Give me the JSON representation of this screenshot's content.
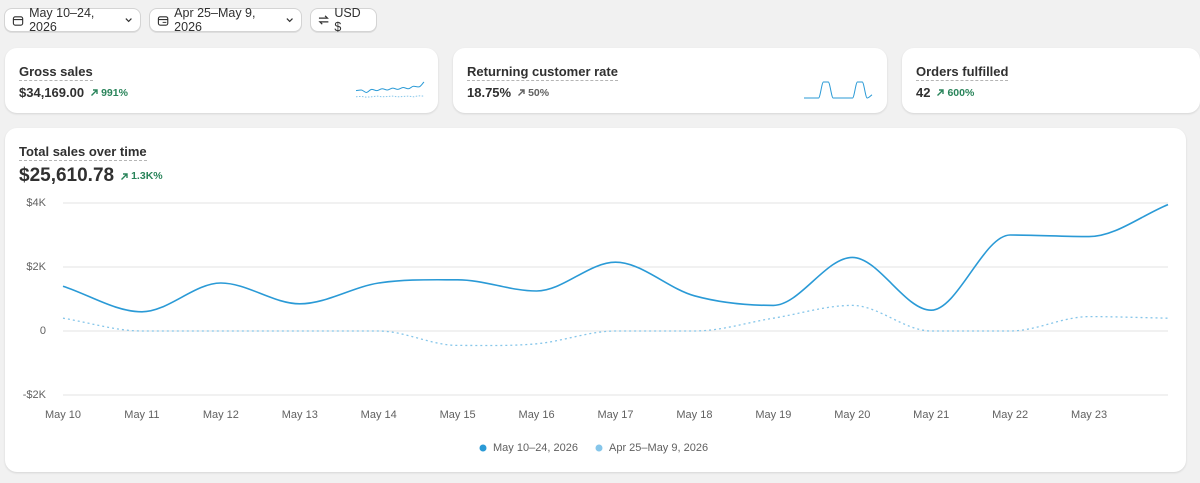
{
  "filters": [
    {
      "label": "May 10–24, 2026"
    },
    {
      "label": "Apr 25–May 9, 2026"
    },
    {
      "label": "USD $"
    }
  ],
  "cards": [
    {
      "title": "Gross sales",
      "value": "$34,169.00",
      "delta": "991%",
      "delta_color": "#29845a",
      "sparkline": {
        "current": [
          1200,
          1300,
          900,
          1400,
          1200,
          1500,
          1300,
          1600,
          1400,
          1700,
          1500,
          1900,
          1800,
          2600
        ],
        "previous": [
          200,
          250,
          150,
          200,
          300,
          200,
          250,
          300,
          200,
          250,
          300,
          200,
          350,
          300
        ]
      }
    },
    {
      "title": "Returning customer rate",
      "value": "18.75%",
      "delta": "50%",
      "delta_color": "#616161",
      "sparkline": {
        "current": [
          0,
          0,
          0,
          0,
          50,
          50,
          0,
          0,
          0,
          0,
          0,
          50,
          50,
          0,
          10
        ]
      }
    },
    {
      "title": "Orders fulfilled",
      "value": "42",
      "delta": "600%",
      "delta_color": "#29845a"
    }
  ],
  "chart_data": {
    "type": "line",
    "title": "Total sales over time",
    "value": "$25,610.78",
    "delta": "1.3K%",
    "delta_color": "#29845a",
    "categories": [
      "May 10",
      "May 11",
      "May 12",
      "May 13",
      "May 14",
      "May 15",
      "May 16",
      "May 17",
      "May 18",
      "May 19",
      "May 20",
      "May 21",
      "May 22",
      "May 23",
      null
    ],
    "series": [
      {
        "name": "May 10–24, 2026",
        "color": "#2a9ad6",
        "dashed": false,
        "values": [
          1400,
          600,
          1500,
          850,
          1500,
          1600,
          1250,
          2150,
          1100,
          800,
          2300,
          650,
          3000,
          2950,
          3950
        ]
      },
      {
        "name": "Apr 25–May 9, 2026",
        "color": "#86c6ea",
        "dashed": true,
        "values": [
          400,
          0,
          0,
          0,
          0,
          -450,
          -400,
          0,
          0,
          400,
          800,
          0,
          0,
          450,
          400
        ]
      }
    ],
    "ylim": [
      -2000,
      4000
    ],
    "yticks": [
      {
        "value": -2000,
        "label": "-$2K"
      },
      0,
      {
        "value": 2000,
        "label": "$2K"
      },
      {
        "value": 4000,
        "label": "$4K"
      }
    ],
    "grid": true
  }
}
